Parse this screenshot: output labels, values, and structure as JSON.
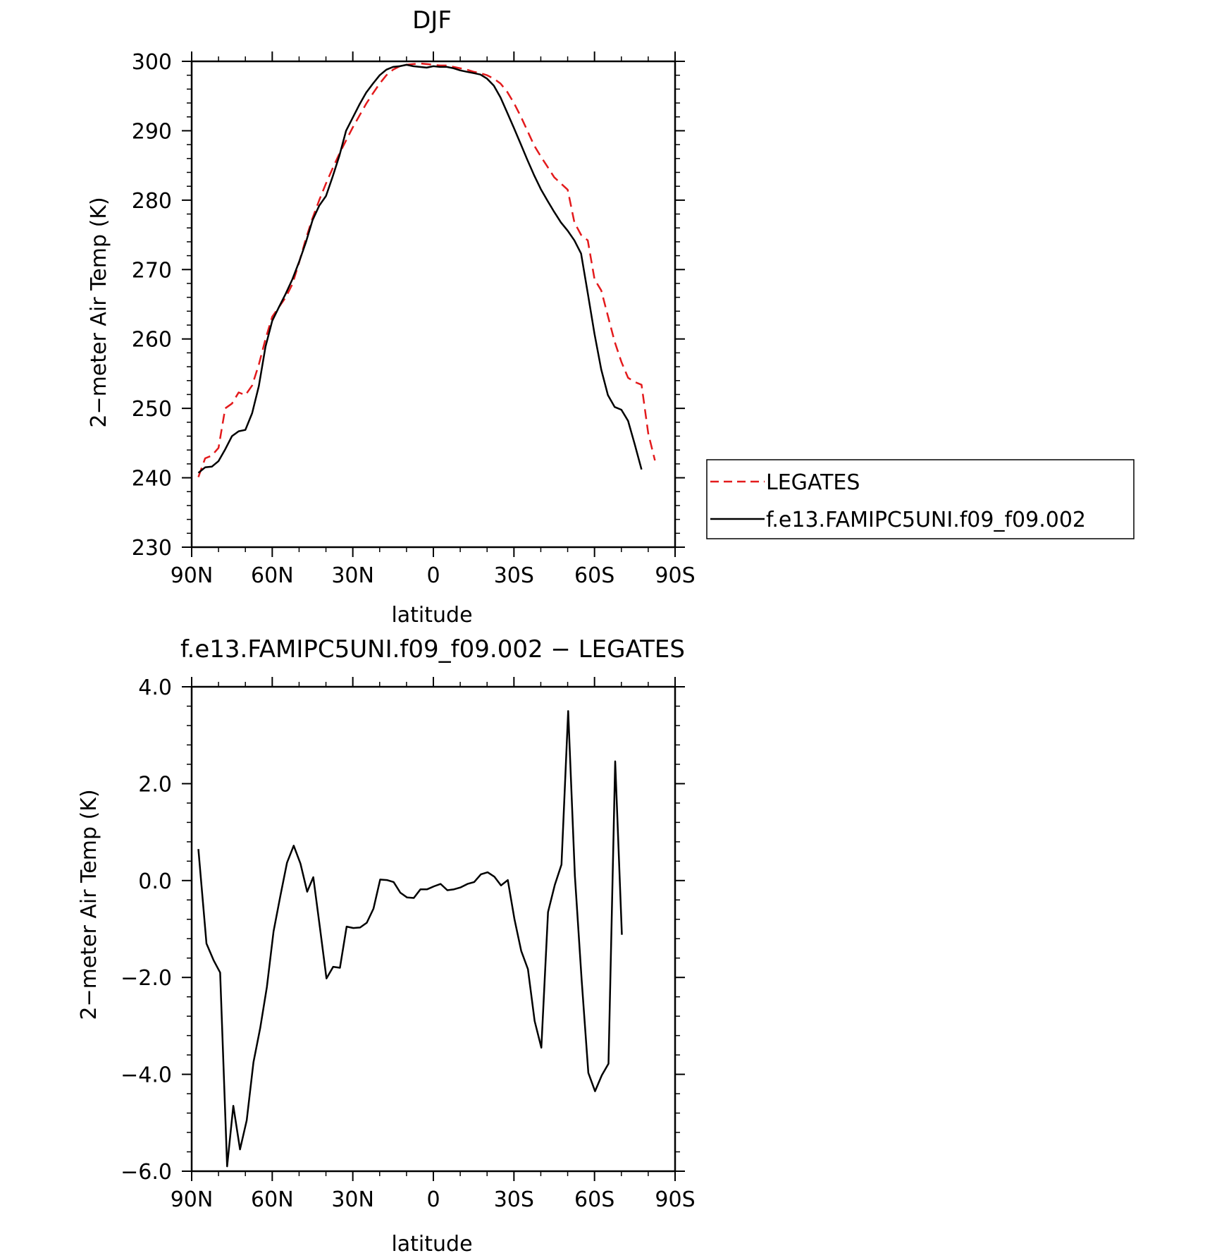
{
  "chart_data": [
    {
      "type": "line",
      "title": "DJF",
      "xlabel": "latitude",
      "ylabel": "2−meter Air Temp (K)",
      "xlim": [
        90,
        -90
      ],
      "ylim": [
        230,
        300
      ],
      "x_ticks": [
        90,
        60,
        30,
        0,
        -30,
        -60,
        -90
      ],
      "x_tick_labels": [
        "90N",
        "60N",
        "30N",
        "0",
        "30S",
        "60S",
        "90S"
      ],
      "y_ticks": [
        230,
        240,
        250,
        260,
        270,
        280,
        290,
        300
      ],
      "y_tick_labels": [
        "230",
        "240",
        "250",
        "260",
        "270",
        "280",
        "290",
        "300"
      ],
      "legend_position": "outside-right",
      "series": [
        {
          "name": "LEGATES",
          "color": "#e31a1c",
          "dash": "dashed",
          "points": [
            [
              87.5,
              240.1
            ],
            [
              85,
              242.8
            ],
            [
              82.5,
              243.2
            ],
            [
              80,
              244.3
            ],
            [
              77.5,
              250
            ],
            [
              75,
              250.7
            ],
            [
              72.5,
              252.3
            ],
            [
              70,
              251.9
            ],
            [
              67.5,
              253.3
            ],
            [
              65,
              256.3
            ],
            [
              62.5,
              260
            ],
            [
              60,
              263.2
            ],
            [
              57.5,
              264.6
            ],
            [
              55,
              266
            ],
            [
              52.5,
              267.9
            ],
            [
              50,
              271
            ],
            [
              47.5,
              274.4
            ],
            [
              45,
              277.4
            ],
            [
              42.5,
              280
            ],
            [
              40,
              282.4
            ],
            [
              37.5,
              284.6
            ],
            [
              35,
              286.7
            ],
            [
              32.5,
              288.6
            ],
            [
              30,
              290.5
            ],
            [
              27.5,
              292.2
            ],
            [
              25,
              293.9
            ],
            [
              22.5,
              295.4
            ],
            [
              20,
              296.8
            ],
            [
              17.5,
              298
            ],
            [
              15,
              298.8
            ],
            [
              12.5,
              299.3
            ],
            [
              10,
              299.5
            ],
            [
              7.5,
              299.6
            ],
            [
              5,
              299.7
            ],
            [
              2.5,
              299.6
            ],
            [
              0,
              299.5
            ],
            [
              -2.5,
              299.4
            ],
            [
              -5,
              299.4
            ],
            [
              -7.5,
              299.2
            ],
            [
              -10,
              299
            ],
            [
              -12.5,
              298.8
            ],
            [
              -15,
              298.5
            ],
            [
              -17.5,
              298.3
            ],
            [
              -20,
              298
            ],
            [
              -22.5,
              297.5
            ],
            [
              -25,
              296.8
            ],
            [
              -27.5,
              295.6
            ],
            [
              -30,
              294
            ],
            [
              -32.5,
              292.1
            ],
            [
              -35,
              290
            ],
            [
              -37.5,
              287.9
            ],
            [
              -40,
              286.3
            ],
            [
              -42.5,
              284.8
            ],
            [
              -45,
              283.3
            ],
            [
              -47.5,
              282.4
            ],
            [
              -50,
              281.5
            ],
            [
              -52.5,
              276.8
            ],
            [
              -55,
              275
            ],
            [
              -57.5,
              274.2
            ],
            [
              -60,
              268.6
            ],
            [
              -62.5,
              267
            ],
            [
              -65,
              263.3
            ],
            [
              -67.5,
              259.6
            ],
            [
              -70,
              256.7
            ],
            [
              -72.5,
              254.4
            ],
            [
              -75,
              253.8
            ],
            [
              -77.5,
              253.4
            ],
            [
              -80,
              246.4
            ],
            [
              -82.5,
              242.5
            ]
          ]
        },
        {
          "name": "f.e13.FAMIPC5UNI.f09_f09.002",
          "color": "#000000",
          "dash": "solid",
          "points": [
            [
              87.5,
              240.7
            ],
            [
              85,
              241.5
            ],
            [
              82.5,
              241.6
            ],
            [
              80,
              242.4
            ],
            [
              77.5,
              244.1
            ],
            [
              75,
              246
            ],
            [
              72.5,
              246.7
            ],
            [
              70,
              246.9
            ],
            [
              67.5,
              249.3
            ],
            [
              65,
              253.2
            ],
            [
              62.5,
              258.9
            ],
            [
              60,
              262.6
            ],
            [
              57.5,
              264.6
            ],
            [
              55,
              266.5
            ],
            [
              52.5,
              268.6
            ],
            [
              50,
              271.1
            ],
            [
              47.5,
              273.9
            ],
            [
              45,
              277.1
            ],
            [
              42.5,
              279.2
            ],
            [
              40,
              280.6
            ],
            [
              37.5,
              283.4
            ],
            [
              35,
              286.4
            ],
            [
              32.5,
              290
            ],
            [
              27.5,
              293.8
            ],
            [
              25,
              295.5
            ],
            [
              22.5,
              296.8
            ],
            [
              20,
              298
            ],
            [
              17.5,
              298.8
            ],
            [
              15,
              299.2
            ],
            [
              12.5,
              299.3
            ],
            [
              10,
              299.5
            ],
            [
              7.5,
              299.3
            ],
            [
              5,
              299.2
            ],
            [
              2.5,
              299.1
            ],
            [
              0,
              299.3
            ],
            [
              -2.5,
              299.2
            ],
            [
              -5,
              299.2
            ],
            [
              -7.5,
              299
            ],
            [
              -10,
              298.7
            ],
            [
              -12.5,
              298.5
            ],
            [
              -15,
              298.3
            ],
            [
              -17.5,
              298.1
            ],
            [
              -20,
              297.5
            ],
            [
              -22.5,
              296.5
            ],
            [
              -25,
              294.8
            ],
            [
              -27.5,
              292.6
            ],
            [
              -30,
              290.4
            ],
            [
              -32.5,
              288.1
            ],
            [
              -35,
              285.8
            ],
            [
              -37.5,
              283.6
            ],
            [
              -40,
              281.6
            ],
            [
              -42.5,
              279.9
            ],
            [
              -45,
              278.3
            ],
            [
              -47.5,
              276.8
            ],
            [
              -50,
              275.6
            ],
            [
              -52.5,
              274.2
            ],
            [
              -55,
              272.3
            ],
            [
              -57.5,
              266.6
            ],
            [
              -60,
              260.7
            ],
            [
              -62.5,
              255.6
            ],
            [
              -65,
              251.9
            ],
            [
              -67.5,
              250.2
            ],
            [
              -70,
              249.8
            ],
            [
              -72.5,
              248.2
            ],
            [
              -75,
              244.8
            ],
            [
              -77.5,
              241.2
            ]
          ]
        }
      ]
    },
    {
      "type": "line",
      "title": "f.e13.FAMIPC5UNI.f09_f09.002 − LEGATES",
      "xlabel": "latitude",
      "ylabel": "2−meter Air Temp (K)",
      "xlim": [
        90,
        -90
      ],
      "ylim": [
        -6.0,
        4.0
      ],
      "x_ticks": [
        90,
        60,
        30,
        0,
        -30,
        -60,
        -90
      ],
      "x_tick_labels": [
        "90N",
        "60N",
        "30N",
        "0",
        "30S",
        "60S",
        "90S"
      ],
      "y_ticks": [
        -6.0,
        -4.0,
        -2.0,
        0.0,
        2.0,
        4.0
      ],
      "y_tick_labels": [
        "−6.0",
        "−4.0",
        "−2.0",
        "0.0",
        "2.0",
        "4.0"
      ],
      "series": [
        {
          "color": "#000000",
          "dash": "solid",
          "points": [
            [
              87.5,
              0.65
            ],
            [
              84.5,
              -1.3
            ],
            [
              81.8,
              -1.65
            ],
            [
              79.4,
              -1.9
            ],
            [
              76.8,
              -5.9
            ],
            [
              74.5,
              -4.65
            ],
            [
              72,
              -5.55
            ],
            [
              69.5,
              -4.95
            ],
            [
              67,
              -3.75
            ],
            [
              64.5,
              -3.05
            ],
            [
              62,
              -2.2
            ],
            [
              59.5,
              -1.05
            ],
            [
              57,
              -0.32
            ],
            [
              54.5,
              0.37
            ],
            [
              52,
              0.72
            ],
            [
              49.5,
              0.35
            ],
            [
              47,
              -0.23
            ],
            [
              44.7,
              0.07
            ],
            [
              42.3,
              -0.95
            ],
            [
              39.8,
              -2.02
            ],
            [
              37.3,
              -1.78
            ],
            [
              34.8,
              -1.8
            ],
            [
              32.3,
              -0.95
            ],
            [
              29.8,
              -0.98
            ],
            [
              27.3,
              -0.97
            ],
            [
              24.8,
              -0.87
            ],
            [
              22.3,
              -0.58
            ],
            [
              19.8,
              0.02
            ],
            [
              17.3,
              0.01
            ],
            [
              14.8,
              -0.03
            ],
            [
              12.3,
              -0.25
            ],
            [
              9.8,
              -0.35
            ],
            [
              7.3,
              -0.36
            ],
            [
              4.8,
              -0.18
            ],
            [
              2.3,
              -0.18
            ],
            [
              -0.2,
              -0.12
            ],
            [
              -2.7,
              -0.07
            ],
            [
              -5.2,
              -0.2
            ],
            [
              -7.7,
              -0.18
            ],
            [
              -10.2,
              -0.14
            ],
            [
              -12.7,
              -0.07
            ],
            [
              -15.2,
              -0.03
            ],
            [
              -17.7,
              0.13
            ],
            [
              -20.2,
              0.17
            ],
            [
              -22.7,
              0.08
            ],
            [
              -25.2,
              -0.1
            ],
            [
              -27.7,
              0.01
            ],
            [
              -30.2,
              -0.8
            ],
            [
              -32.7,
              -1.45
            ],
            [
              -35.2,
              -1.83
            ],
            [
              -37.7,
              -2.9
            ],
            [
              -40.2,
              -3.45
            ],
            [
              -42.7,
              -0.65
            ],
            [
              -45.2,
              -0.09
            ],
            [
              -47.7,
              0.33
            ],
            [
              -50.2,
              3.5
            ],
            [
              -52.7,
              0.1
            ],
            [
              -55.2,
              -2.05
            ],
            [
              -57.7,
              -3.97
            ],
            [
              -60.2,
              -4.35
            ],
            [
              -62.7,
              -4.02
            ],
            [
              -65.2,
              -3.78
            ],
            [
              -67.7,
              2.46
            ],
            [
              -70.2,
              -1.12
            ]
          ]
        }
      ]
    }
  ]
}
